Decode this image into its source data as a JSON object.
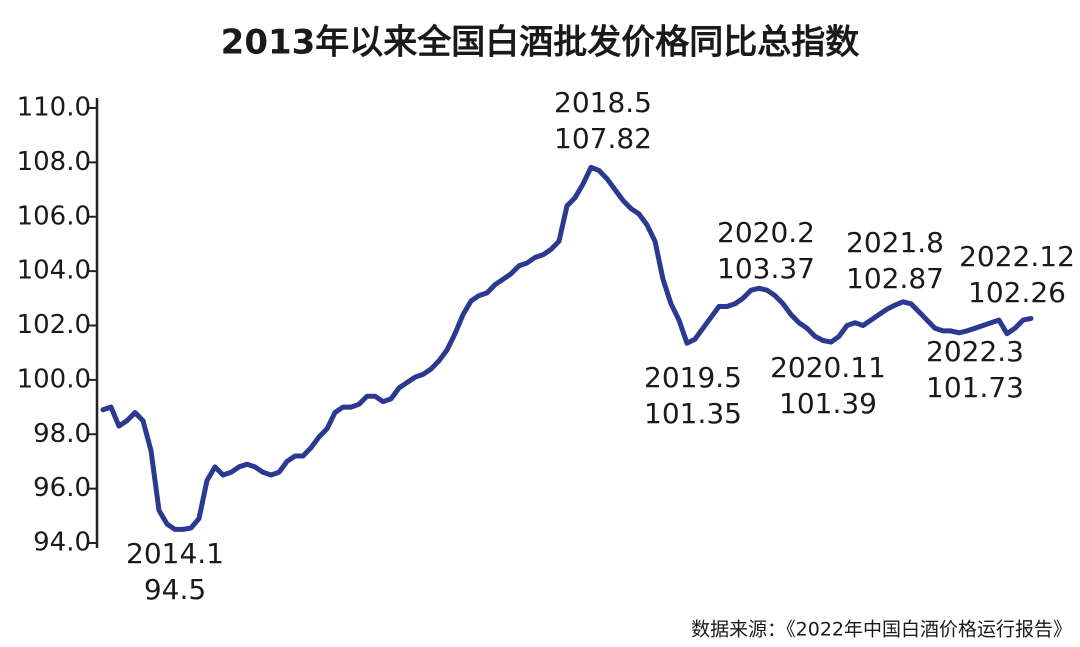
{
  "chart_data": {
    "type": "line",
    "title": "2013年以来全国白酒批发价格同比总指数",
    "source": "数据来源：《2022年中国白酒价格运行报告》",
    "categories": [
      null,
      null,
      null,
      null,
      null,
      null,
      null,
      null,
      null,
      null,
      null,
      null,
      null,
      null,
      null,
      null,
      null,
      null,
      null,
      null,
      null,
      null,
      null,
      null,
      null,
      null,
      null,
      null,
      null,
      null,
      null,
      null,
      null,
      null,
      null,
      null,
      null,
      null,
      null,
      null,
      null,
      null,
      null,
      null,
      null,
      null,
      null,
      null,
      null,
      null,
      null,
      null,
      null,
      null,
      null,
      null,
      null,
      null,
      null,
      null,
      null,
      null,
      null,
      null,
      null,
      null,
      null,
      null,
      null,
      null,
      null,
      null,
      null,
      null,
      null,
      null,
      null,
      null,
      null,
      null,
      null,
      null,
      null,
      null,
      null,
      null,
      null,
      null,
      null,
      null,
      null,
      null,
      null,
      null,
      null,
      null,
      null,
      null,
      null,
      null,
      null,
      null,
      null,
      null,
      null,
      null,
      null,
      null,
      null,
      null,
      null,
      null,
      null,
      null,
      null,
      null,
      null
    ],
    "series": [
      {
        "color": "#2b3990",
        "values": [
          98.9,
          99.0,
          98.3,
          98.5,
          98.8,
          98.5,
          97.4,
          95.2,
          94.7,
          94.5,
          94.5,
          94.55,
          94.9,
          96.3,
          96.8,
          96.5,
          96.6,
          96.8,
          96.9,
          96.8,
          96.6,
          96.5,
          96.6,
          97.0,
          97.2,
          97.2,
          97.5,
          97.9,
          98.2,
          98.8,
          99.0,
          99.0,
          99.1,
          99.4,
          99.4,
          99.2,
          99.3,
          99.7,
          99.9,
          100.1,
          100.2,
          100.4,
          100.7,
          101.1,
          101.7,
          102.4,
          102.9,
          103.1,
          103.2,
          103.5,
          103.7,
          103.9,
          104.2,
          104.3,
          104.5,
          104.6,
          104.8,
          105.1,
          106.4,
          106.7,
          107.2,
          107.82,
          107.7,
          107.4,
          107.0,
          106.6,
          106.3,
          106.1,
          105.7,
          105.1,
          103.7,
          102.8,
          102.2,
          101.35,
          101.5,
          101.9,
          102.3,
          102.7,
          102.7,
          102.8,
          103.0,
          103.3,
          103.37,
          103.3,
          103.1,
          102.8,
          102.4,
          102.1,
          101.9,
          101.6,
          101.45,
          101.39,
          101.6,
          102.0,
          102.1,
          102.0,
          102.2,
          102.4,
          102.6,
          102.75,
          102.87,
          102.8,
          102.5,
          102.2,
          101.9,
          101.8,
          101.8,
          101.73,
          101.8,
          101.9,
          102.0,
          102.1,
          102.2,
          101.7,
          101.9,
          102.2,
          102.26
        ]
      }
    ],
    "annotations": [
      {
        "label": "2014.1",
        "value": 94.5
      },
      {
        "label": "2018.5",
        "value": 107.82
      },
      {
        "label": "2019.5",
        "value": 101.35
      },
      {
        "label": "2020.2",
        "value": 103.37
      },
      {
        "label": "2020.11",
        "value": 101.39
      },
      {
        "label": "2021.8",
        "value": 102.87
      },
      {
        "label": "2022.3",
        "value": 101.73
      },
      {
        "label": "2022.12",
        "value": 102.26
      }
    ],
    "ylim": [
      94,
      110
    ],
    "yticks": [
      {
        "value": 94,
        "label": "94.0"
      },
      {
        "value": 96,
        "label": "96.0"
      },
      {
        "value": 98,
        "label": "98.0"
      },
      {
        "value": 100,
        "label": "100.0"
      },
      {
        "value": 102,
        "label": "102.0"
      },
      {
        "value": 104,
        "label": "104.0"
      },
      {
        "value": 106,
        "label": "106.0"
      },
      {
        "value": 108,
        "label": "108.0"
      },
      {
        "value": 110,
        "label": "110.0"
      }
    ]
  }
}
